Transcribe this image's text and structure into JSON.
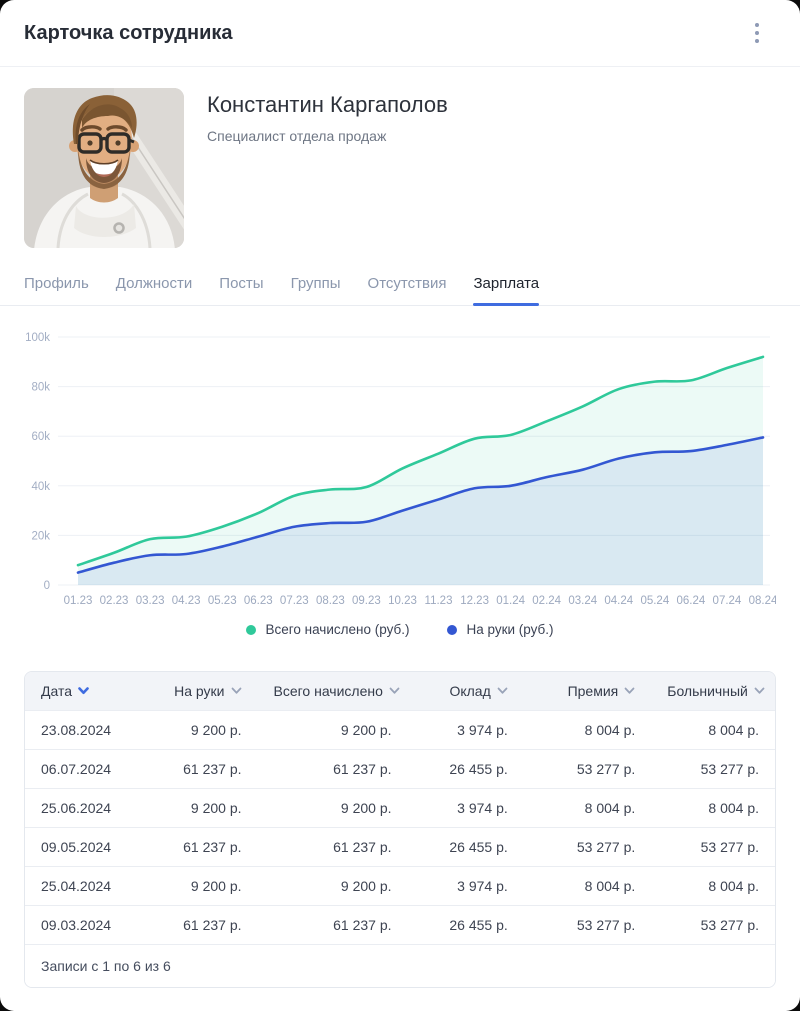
{
  "header": {
    "title": "Карточка сотрудника"
  },
  "profile": {
    "name": "Константин Каргаполов",
    "position": "Специалист отдела продаж"
  },
  "tabs": [
    {
      "key": "profile",
      "label": "Профиль",
      "active": false
    },
    {
      "key": "positions",
      "label": "Должности",
      "active": false
    },
    {
      "key": "posts",
      "label": "Посты",
      "active": false
    },
    {
      "key": "groups",
      "label": "Группы",
      "active": false
    },
    {
      "key": "absences",
      "label": "Отсутствия",
      "active": false
    },
    {
      "key": "salary",
      "label": "Зарплата",
      "active": true
    }
  ],
  "chart_data": {
    "type": "area",
    "x": [
      "01.23",
      "02.23",
      "03.23",
      "04.23",
      "05.23",
      "06.23",
      "07.23",
      "08.23",
      "09.23",
      "10.23",
      "11.23",
      "12.23",
      "01.24",
      "02.24",
      "03.24",
      "04.24",
      "05.24",
      "06.24",
      "07.24",
      "08.24"
    ],
    "series": [
      {
        "name": "Всего начислено (руб.)",
        "color": "#2fc99a",
        "fill_opacity": 0.09,
        "values": [
          8000,
          13000,
          18500,
          19500,
          23500,
          29000,
          36000,
          38500,
          39500,
          47000,
          53000,
          59000,
          60500,
          66000,
          72000,
          79000,
          82000,
          82500,
          87500,
          92000
        ]
      },
      {
        "name": "На руки (руб.)",
        "color": "#3357d2",
        "fill_opacity": 0.1,
        "values": [
          5000,
          9000,
          12000,
          12500,
          15500,
          19500,
          23500,
          25000,
          25500,
          30000,
          34500,
          39000,
          40000,
          43500,
          46500,
          51000,
          53500,
          54000,
          56500,
          59500
        ]
      }
    ],
    "ylim": [
      0,
      100000
    ],
    "yticks": [
      {
        "value": 0,
        "label": "0"
      },
      {
        "value": 20000,
        "label": "20k"
      },
      {
        "value": 40000,
        "label": "40k"
      },
      {
        "value": 60000,
        "label": "60k"
      },
      {
        "value": 80000,
        "label": "80k"
      },
      {
        "value": 100000,
        "label": "100k"
      }
    ],
    "grid": true,
    "legend_position": "bottom"
  },
  "table": {
    "columns": [
      {
        "label": "Дата",
        "sort": "active",
        "align": "left"
      },
      {
        "label": "На руки",
        "sort": "inactive",
        "align": "right"
      },
      {
        "label": "Всего начислено",
        "sort": "inactive",
        "align": "right"
      },
      {
        "label": "Оклад",
        "sort": "inactive",
        "align": "right"
      },
      {
        "label": "Премия",
        "sort": "inactive",
        "align": "right"
      },
      {
        "label": "Больничный",
        "sort": "inactive",
        "align": "right"
      }
    ],
    "rows": [
      [
        "23.08.2024",
        "9 200 р.",
        "9 200 р.",
        "3 974 р.",
        "8 004 р.",
        "8 004 р."
      ],
      [
        "06.07.2024",
        "61 237 р.",
        "61 237 р.",
        "26 455 р.",
        "53 277 р.",
        "53 277 р."
      ],
      [
        "25.06.2024",
        "9 200 р.",
        "9 200 р.",
        "3 974 р.",
        "8 004 р.",
        "8 004 р."
      ],
      [
        "09.05.2024",
        "61 237 р.",
        "61 237 р.",
        "26 455 р.",
        "53 277 р.",
        "53 277 р."
      ],
      [
        "25.04.2024",
        "9 200 р.",
        "9 200 р.",
        "3 974 р.",
        "8 004 р.",
        "8 004 р."
      ],
      [
        "09.03.2024",
        "61 237 р.",
        "61 237 р.",
        "26 455 р.",
        "53 277 р.",
        "53 277 р."
      ]
    ],
    "footer": "Записи с 1 по 6 из 6"
  },
  "colors": {
    "accent_blue": "#3f6ce0",
    "axis_text": "#a3aec4",
    "grid_line": "#edf0f5",
    "sort_inactive": "#99a3b8"
  }
}
